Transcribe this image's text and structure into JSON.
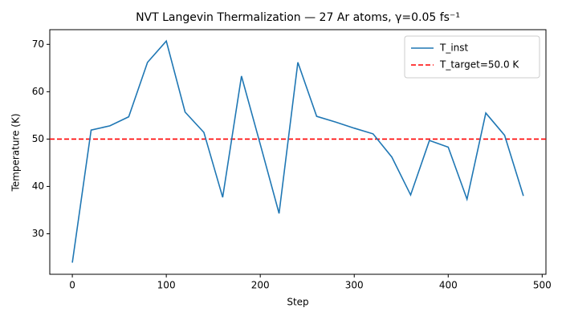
{
  "chart_data": {
    "type": "line",
    "title": "NVT Langevin Thermalization — 27 Ar atoms, γ=0.05 fs⁻¹",
    "x_label": "Step",
    "y_label": "Temperature (K)",
    "x": [
      0,
      20,
      40,
      60,
      80,
      100,
      120,
      140,
      160,
      180,
      200,
      220,
      240,
      260,
      280,
      300,
      320,
      340,
      360,
      380,
      400,
      420,
      440,
      460,
      480
    ],
    "series": [
      {
        "name": "T_inst",
        "color": "#1f77b4",
        "values": [
          23.9,
          51.9,
          52.8,
          54.7,
          66.2,
          70.7,
          55.7,
          51.4,
          37.7,
          63.3,
          48.9,
          34.3,
          66.2,
          54.8,
          53.6,
          52.3,
          51.1,
          46.2,
          38.2,
          49.7,
          48.3,
          37.3,
          55.5,
          50.8,
          38.0
        ]
      }
    ],
    "reference_line": {
      "name": "T_target=50.0 K",
      "value": 50.0,
      "color": "#ff0000",
      "dashed": true
    },
    "xlim": [
      -24,
      504
    ],
    "xticks": [
      0,
      100,
      200,
      300,
      400,
      500
    ],
    "ylim": [
      21.45,
      73.1
    ],
    "yticks": [
      30,
      40,
      50,
      60,
      70
    ],
    "legend": "upper right"
  }
}
